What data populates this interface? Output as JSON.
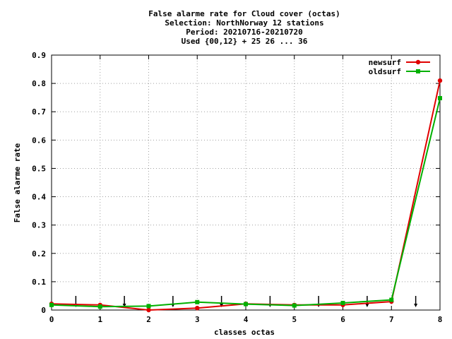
{
  "chart_data": {
    "type": "line",
    "title_lines": [
      "False alarme rate  for Cloud cover (octas)",
      "Selection: NorthNorway     12 stations",
      "Period: 20210716-20210720",
      "Used {00,12} + 25 26 ... 36"
    ],
    "xlabel": "classes octas",
    "ylabel": "False alarme rate",
    "xlim": [
      0,
      8
    ],
    "ylim": [
      0,
      0.9
    ],
    "x_ticks": [
      "0",
      "1",
      "2",
      "3",
      "4",
      "5",
      "6",
      "7",
      "8"
    ],
    "y_ticks": [
      "0",
      "0.1",
      "0.2",
      "0.3",
      "0.4",
      "0.5",
      "0.6",
      "0.7",
      "0.8",
      "0.9"
    ],
    "grid": true,
    "legend_position": "top-right",
    "series": [
      {
        "name": "newsurf",
        "color": "#e00000",
        "marker": "filled-circle",
        "x": [
          0,
          1,
          2,
          3,
          4,
          5,
          6,
          7,
          8
        ],
        "y": [
          0.022,
          0.018,
          0.0,
          0.007,
          0.022,
          0.018,
          0.018,
          0.03,
          0.81
        ]
      },
      {
        "name": "oldsurf",
        "color": "#00b000",
        "marker": "filled-square",
        "x": [
          0,
          1,
          2,
          3,
          4,
          5,
          6,
          7,
          8
        ],
        "y": [
          0.018,
          0.012,
          0.014,
          0.028,
          0.021,
          0.016,
          0.025,
          0.036,
          0.748
        ]
      }
    ],
    "arrow_markers": {
      "color": "#000000",
      "x": [
        0.5,
        1.5,
        2.5,
        3.5,
        4.5,
        5.5,
        6.5,
        7.5
      ]
    }
  }
}
